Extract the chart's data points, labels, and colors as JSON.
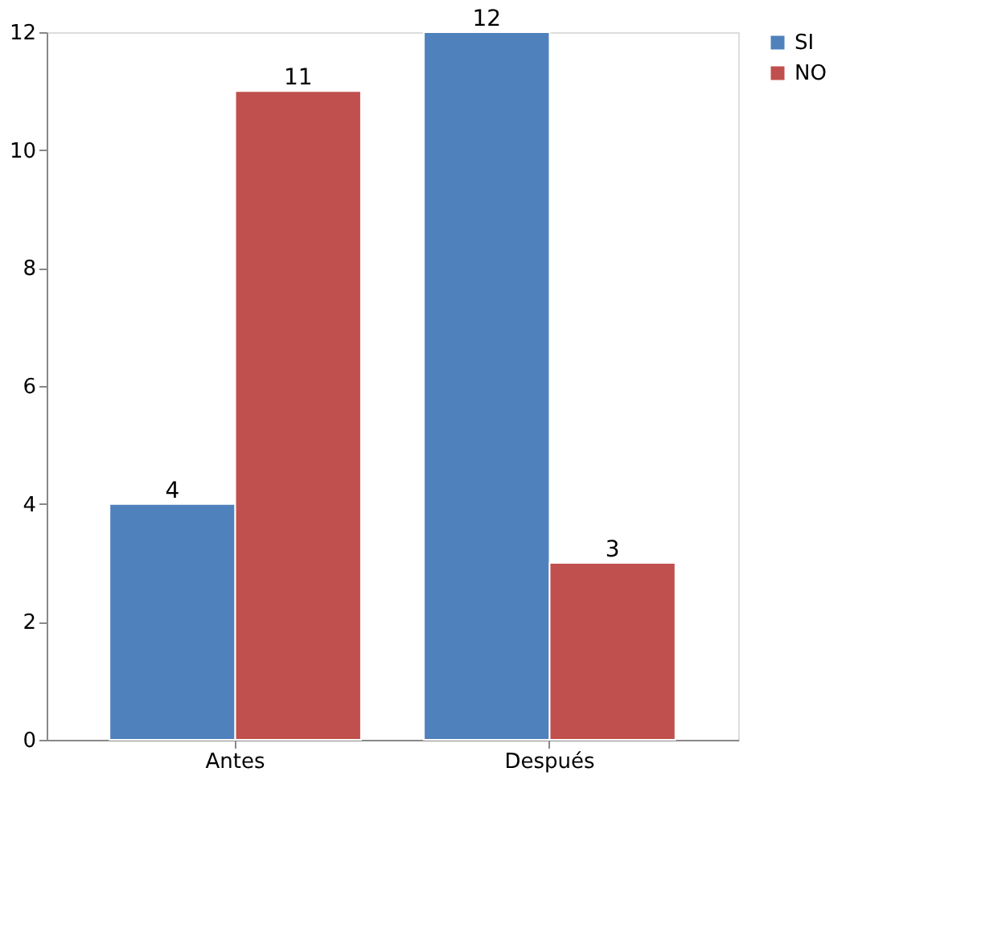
{
  "chart_data": {
    "type": "bar",
    "categories": [
      "Antes",
      "Después"
    ],
    "series": [
      {
        "name": "SI",
        "color": "#4f81bd",
        "values": [
          4,
          12
        ]
      },
      {
        "name": "NO",
        "color": "#c0504d",
        "values": [
          11,
          3
        ]
      }
    ],
    "ylim": [
      0,
      12
    ],
    "yticks": [
      0,
      2,
      4,
      6,
      8,
      10,
      12
    ],
    "grid": false,
    "legend": "right",
    "data_labels": true
  }
}
